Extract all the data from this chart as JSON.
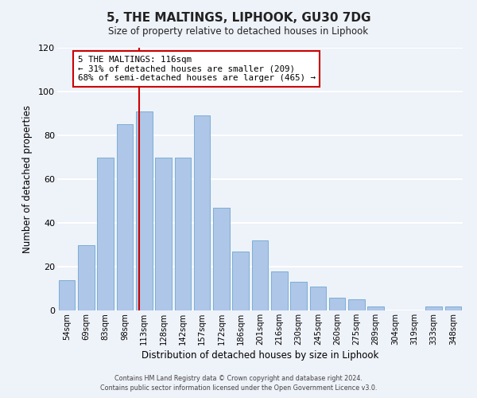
{
  "title": "5, THE MALTINGS, LIPHOOK, GU30 7DG",
  "subtitle": "Size of property relative to detached houses in Liphook",
  "xlabel": "Distribution of detached houses by size in Liphook",
  "ylabel": "Number of detached properties",
  "bar_labels": [
    "54sqm",
    "69sqm",
    "83sqm",
    "98sqm",
    "113sqm",
    "128sqm",
    "142sqm",
    "157sqm",
    "172sqm",
    "186sqm",
    "201sqm",
    "216sqm",
    "230sqm",
    "245sqm",
    "260sqm",
    "275sqm",
    "289sqm",
    "304sqm",
    "319sqm",
    "333sqm",
    "348sqm"
  ],
  "bar_values": [
    14,
    30,
    70,
    85,
    91,
    70,
    70,
    89,
    47,
    27,
    32,
    18,
    13,
    11,
    6,
    5,
    2,
    0,
    0,
    2,
    2
  ],
  "bar_color": "#aec6e8",
  "bar_edge_color": "#7aafd4",
  "marker_label": "5 THE MALTINGS: 116sqm",
  "marker_color": "#cc0000",
  "annotation_line1": "← 31% of detached houses are smaller (209)",
  "annotation_line2": "68% of semi-detached houses are larger (465) →",
  "ylim": [
    0,
    120
  ],
  "yticks": [
    0,
    20,
    40,
    60,
    80,
    100,
    120
  ],
  "footer1": "Contains HM Land Registry data © Crown copyright and database right 2024.",
  "footer2": "Contains public sector information licensed under the Open Government Licence v3.0.",
  "bg_color": "#eef2f9",
  "plot_bg_color": "#eef2f9",
  "grid_color": "#ffffff",
  "annotation_box_color": "#ffffff",
  "annotation_box_edge": "#cc0000"
}
